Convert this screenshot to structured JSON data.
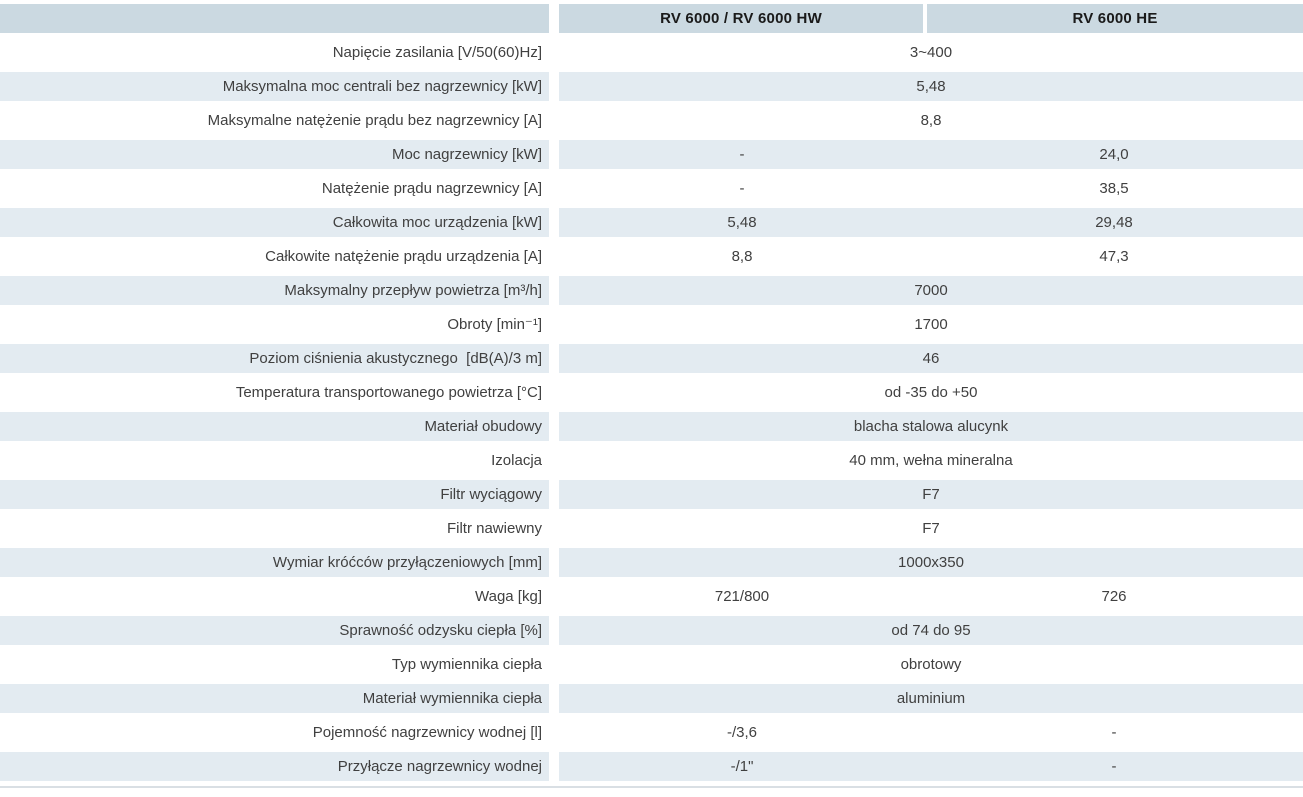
{
  "colors": {
    "header_bg": "#cbd9e1",
    "row_shade": "#e3ebf1",
    "text": "#404040",
    "header_text": "#1a1a1a",
    "bottom_rule": "#d9dfe4"
  },
  "table": {
    "columns": [
      "RV 6000 / RV 6000 HW",
      "RV 6000 HE"
    ],
    "rows": [
      {
        "label": "Napięcie zasilania [V/50(60)Hz]",
        "span": "3~400"
      },
      {
        "label": "Maksymalna moc centrali bez nagrzewnicy [kW]",
        "span": "5,48"
      },
      {
        "label": "Maksymalne natężenie prądu bez nagrzewnicy [A]",
        "span": "8,8"
      },
      {
        "label": "Moc nagrzewnicy [kW]",
        "col1": "-",
        "col2": "24,0"
      },
      {
        "label": "Natężenie prądu nagrzewnicy [A]",
        "col1": "-",
        "col2": "38,5"
      },
      {
        "label": "Całkowita moc urządzenia [kW]",
        "col1": "5,48",
        "col2": "29,48"
      },
      {
        "label": "Całkowite natężenie prądu urządzenia [A]",
        "col1": "8,8",
        "col2": "47,3"
      },
      {
        "label": "Maksymalny przepływ powietrza [m³/h]",
        "span": "7000"
      },
      {
        "label": "Obroty [min⁻¹]",
        "span": "1700"
      },
      {
        "label": "Poziom ciśnienia akustycznego  [dB(A)/3 m]",
        "span": "46"
      },
      {
        "label": "Temperatura transportowanego powietrza [°C]",
        "span": "od -35 do +50"
      },
      {
        "label": "Materiał obudowy",
        "span": "blacha stalowa alucynk"
      },
      {
        "label": "Izolacja",
        "span": "40 mm, wełna mineralna"
      },
      {
        "label": "Filtr wyciągowy",
        "span": "F7"
      },
      {
        "label": "Filtr nawiewny",
        "span": "F7"
      },
      {
        "label": "Wymiar króćców przyłączeniowych [mm]",
        "span": "1000x350"
      },
      {
        "label": "Waga [kg]",
        "col1": "721/800",
        "col2": "726"
      },
      {
        "label": "Sprawność odzysku ciepła [%]",
        "span": "od 74 do 95"
      },
      {
        "label": "Typ wymiennika ciepła",
        "span": "obrotowy"
      },
      {
        "label": "Materiał wymiennika ciepła",
        "span": "aluminium"
      },
      {
        "label": "Pojemność nagrzewnicy wodnej [l]",
        "col1": "-/3,6",
        "col2": "-"
      },
      {
        "label": "Przyłącze nagrzewnicy wodnej",
        "col1": "-/1\"",
        "col2": "-"
      }
    ]
  }
}
